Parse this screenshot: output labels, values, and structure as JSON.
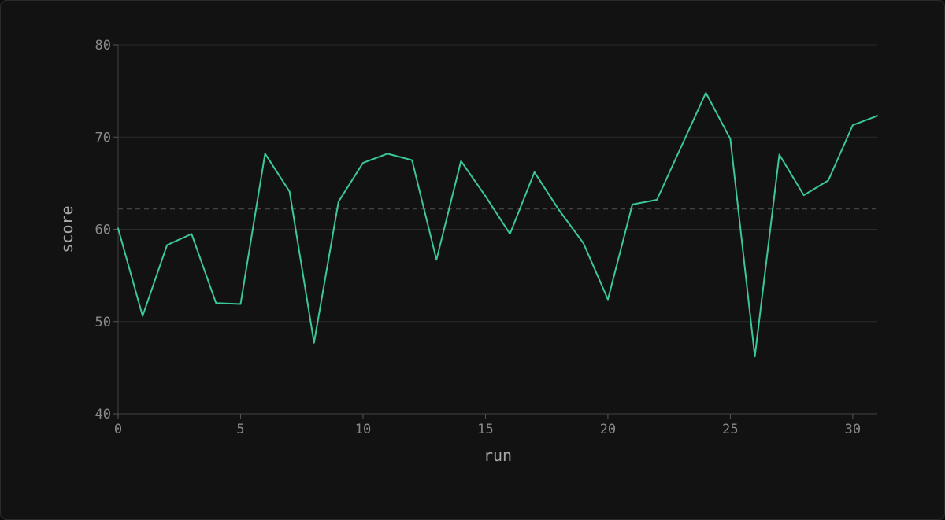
{
  "chart_data": {
    "type": "line",
    "xlabel": "run",
    "ylabel": "score",
    "xlim": [
      0,
      31
    ],
    "ylim": [
      40,
      80
    ],
    "x_ticks": [
      0,
      5,
      10,
      15,
      20,
      25,
      30
    ],
    "y_ticks": [
      40,
      50,
      60,
      70,
      80
    ],
    "grid": "horizontal",
    "reference_line": {
      "y": 62.2,
      "style": "dashed"
    },
    "series": [
      {
        "color": "#3cc79a",
        "x": [
          0,
          1,
          2,
          3,
          4,
          5,
          6,
          7,
          8,
          9,
          10,
          11,
          12,
          13,
          14,
          15,
          16,
          17,
          18,
          19,
          20,
          21,
          22,
          23,
          24,
          25,
          26,
          27,
          28,
          29,
          30,
          31
        ],
        "values": [
          60.1,
          50.6,
          58.3,
          59.5,
          52.0,
          51.9,
          68.2,
          64.1,
          47.7,
          63.0,
          67.2,
          68.2,
          67.5,
          56.7,
          67.4,
          63.6,
          59.5,
          66.2,
          62.1,
          58.5,
          52.4,
          62.7,
          63.2,
          69.0,
          74.8,
          69.8,
          46.2,
          68.1,
          63.7,
          65.3,
          71.3,
          72.3
        ]
      }
    ]
  }
}
